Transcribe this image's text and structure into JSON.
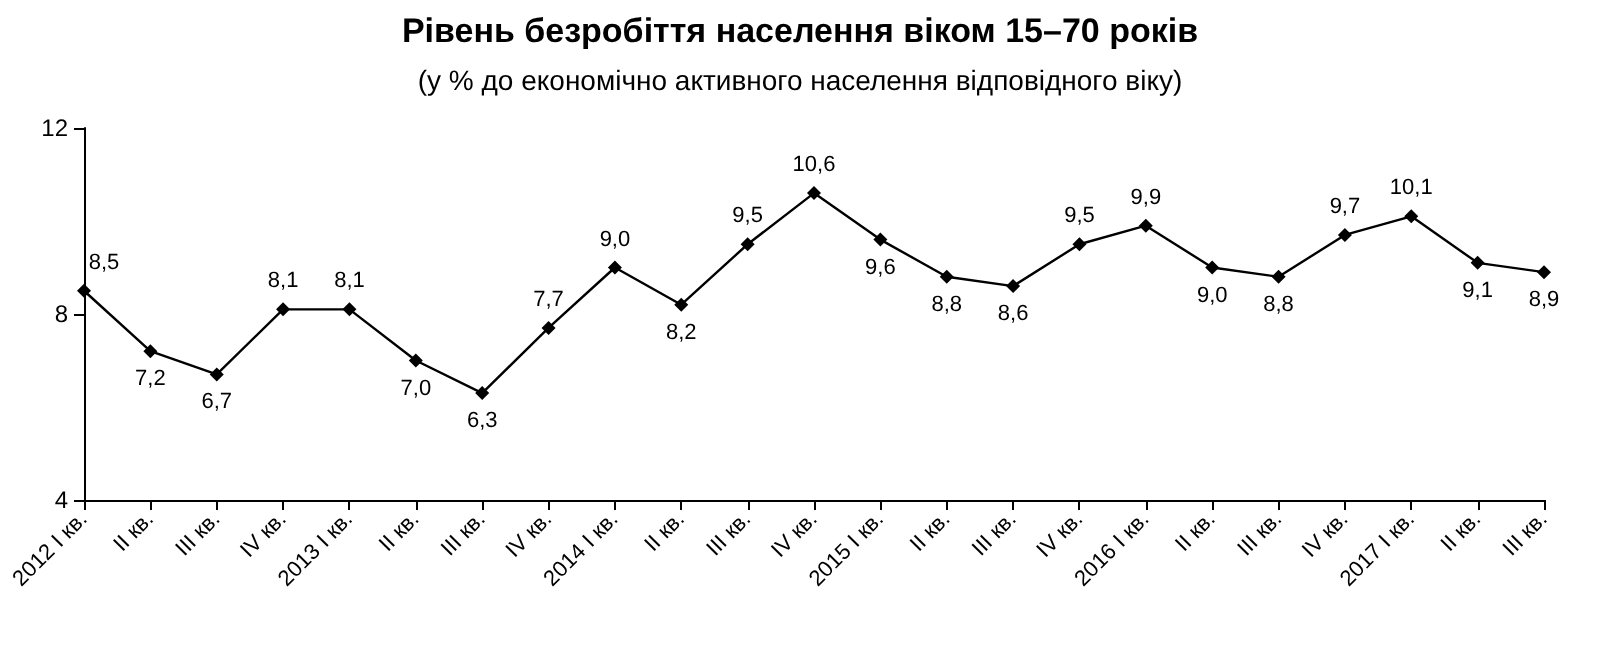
{
  "chart_data": {
    "type": "line",
    "title": "Рівень безробіття населення віком 15–70 років",
    "subtitle": "(у % до економічно активного населення відповідного віку)",
    "categories": [
      "2012 I кв.",
      "II кв.",
      "III кв.",
      "IV кв.",
      "2013 I кв.",
      "II кв.",
      "III кв.",
      "IV кв.",
      "2014 I кв.",
      "II кв.",
      "III кв.",
      "IV кв.",
      "2015 I кв.",
      "II кв.",
      "III кв.",
      "IV кв.",
      "2016 I кв.",
      "II кв.",
      "III кв.",
      "IV кв.",
      "2017 I кв.",
      "II кв.",
      "III кв."
    ],
    "series": [
      {
        "color": "#000000",
        "values": [
          8.5,
          7.2,
          6.7,
          8.1,
          8.1,
          7.0,
          6.3,
          7.7,
          9.0,
          8.2,
          9.5,
          10.6,
          9.6,
          8.8,
          8.6,
          9.5,
          9.9,
          9.0,
          8.8,
          9.7,
          10.1,
          9.1,
          8.9
        ],
        "value_labels": [
          "8,5",
          "7,2",
          "6,7",
          "8,1",
          "8,1",
          "7,0",
          "6,3",
          "7,7",
          "9,0",
          "8,2",
          "9,5",
          "10,6",
          "9,6",
          "8,8",
          "8,6",
          "9,5",
          "9,9",
          "9,0",
          "8,8",
          "9,7",
          "10,1",
          "9,1",
          "8,9"
        ]
      }
    ],
    "ylim": [
      4,
      12
    ],
    "yticks": [
      4,
      8,
      12
    ],
    "grid": false,
    "marker": "diamond",
    "line_style": "solid"
  }
}
